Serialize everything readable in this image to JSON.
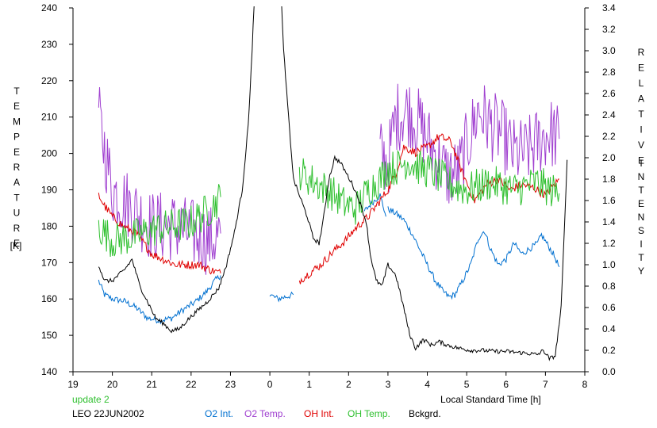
{
  "chart_data": {
    "type": "line",
    "status_note": "update 2",
    "station_label": "LEO 22JUN2002",
    "xlabel": "Local Standard Time [h]",
    "ylabel_left_letters": [
      "T",
      "E",
      "M",
      "P",
      "E",
      "R",
      "A",
      "T",
      "U",
      "R",
      "E"
    ],
    "ylabel_left_unit": "[K]",
    "ylabel_right_letters_1": [
      "R",
      "E",
      "L",
      "A",
      "T",
      "I",
      "V",
      "E"
    ],
    "ylabel_right_letters_2": [
      "I",
      "N",
      "T",
      "E",
      "N",
      "S",
      "I",
      "T",
      "Y"
    ],
    "x_ticks": [
      "19",
      "20",
      "21",
      "22",
      "23",
      "0",
      "1",
      "2",
      "3",
      "4",
      "5",
      "6",
      "7",
      "8"
    ],
    "xlim_hours_since_19": [
      0,
      13
    ],
    "y_left_ticks": [
      "140",
      "150",
      "160",
      "170",
      "180",
      "190",
      "200",
      "210",
      "220",
      "230",
      "240"
    ],
    "y_left_lim": [
      140,
      240
    ],
    "y_right_ticks": [
      "0.0",
      "0.2",
      "0.4",
      "0.6",
      "0.8",
      "1.0",
      "1.2",
      "1.4",
      "1.6",
      "1.8",
      "2.0",
      "2.2",
      "2.4",
      "2.6",
      "2.8",
      "3.0",
      "3.2",
      "3.4"
    ],
    "y_right_lim": [
      0,
      3.4
    ],
    "legend_placement": "bottom",
    "series": [
      {
        "name": "O2 Int.",
        "axis": "right",
        "color": "#0070d0",
        "noise": 0.03,
        "segments": [
          [
            [
              0.65,
              0.85
            ],
            [
              0.8,
              0.72
            ],
            [
              1.0,
              0.68
            ],
            [
              1.3,
              0.66
            ],
            [
              1.6,
              0.6
            ],
            [
              1.9,
              0.5
            ],
            [
              2.2,
              0.48
            ],
            [
              2.5,
              0.5
            ],
            [
              2.8,
              0.58
            ],
            [
              3.1,
              0.65
            ],
            [
              3.4,
              0.75
            ],
            [
              3.6,
              0.85
            ],
            [
              3.75,
              0.9
            ]
          ],
          [
            [
              5.0,
              0.72
            ],
            [
              5.2,
              0.68
            ],
            [
              5.4,
              0.7
            ],
            [
              5.6,
              0.72
            ]
          ],
          [
            [
              7.4,
              1.5
            ],
            [
              7.6,
              1.58
            ],
            [
              7.8,
              1.65
            ],
            [
              7.9,
              1.52
            ],
            [
              7.95,
              1.45
            ]
          ],
          [
            [
              8.0,
              1.52
            ],
            [
              8.2,
              1.48
            ],
            [
              8.4,
              1.42
            ],
            [
              8.6,
              1.3
            ],
            [
              8.8,
              1.15
            ],
            [
              9.0,
              1.0
            ],
            [
              9.2,
              0.85
            ],
            [
              9.4,
              0.75
            ],
            [
              9.55,
              0.7
            ],
            [
              9.7,
              0.72
            ],
            [
              9.9,
              0.85
            ],
            [
              10.1,
              1.0
            ],
            [
              10.3,
              1.25
            ],
            [
              10.45,
              1.32
            ],
            [
              10.6,
              1.15
            ],
            [
              10.8,
              1.0
            ],
            [
              11.0,
              1.05
            ],
            [
              11.2,
              1.2
            ],
            [
              11.4,
              1.1
            ],
            [
              11.6,
              1.15
            ],
            [
              11.8,
              1.2
            ],
            [
              11.9,
              1.28
            ],
            [
              12.0,
              1.22
            ],
            [
              12.2,
              1.1
            ],
            [
              12.35,
              0.98
            ]
          ]
        ]
      },
      {
        "name": "O2 Temp.",
        "axis": "left",
        "color": "#a040d0",
        "noise": 10,
        "segments": [
          [
            [
              0.65,
              210
            ],
            [
              1.0,
              190
            ],
            [
              1.5,
              185
            ],
            [
              2.0,
              180
            ],
            [
              2.5,
              180
            ],
            [
              3.0,
              178
            ],
            [
              3.5,
              176
            ],
            [
              3.75,
              178
            ]
          ],
          [
            [
              7.8,
              200
            ],
            [
              8.0,
              197
            ],
            [
              8.2,
              210
            ],
            [
              8.5,
              212
            ],
            [
              8.8,
              208
            ],
            [
              9.0,
              204
            ],
            [
              9.2,
              200
            ],
            [
              9.5,
              194
            ],
            [
              9.8,
              195
            ],
            [
              10.0,
              202
            ],
            [
              10.3,
              212
            ],
            [
              10.6,
              208
            ],
            [
              10.9,
              205
            ],
            [
              11.2,
              200
            ],
            [
              11.5,
              200
            ],
            [
              11.8,
              203
            ],
            [
              12.1,
              206
            ],
            [
              12.35,
              204
            ]
          ]
        ]
      },
      {
        "name": "OH Int.",
        "axis": "right",
        "color": "#e00000",
        "noise": 0.04,
        "segments": [
          [
            [
              0.65,
              1.65
            ],
            [
              0.8,
              1.55
            ],
            [
              1.0,
              1.45
            ],
            [
              1.3,
              1.35
            ],
            [
              1.6,
              1.3
            ],
            [
              2.0,
              1.1
            ],
            [
              2.3,
              1.05
            ],
            [
              2.6,
              1.0
            ],
            [
              2.9,
              1.0
            ],
            [
              3.2,
              1.0
            ],
            [
              3.5,
              0.95
            ],
            [
              3.75,
              0.92
            ]
          ],
          [
            [
              5.75,
              0.85
            ],
            [
              6.0,
              0.92
            ],
            [
              6.3,
              1.0
            ],
            [
              6.6,
              1.12
            ],
            [
              6.9,
              1.22
            ],
            [
              7.2,
              1.35
            ],
            [
              7.5,
              1.45
            ],
            [
              7.8,
              1.6
            ],
            [
              8.0,
              1.7
            ],
            [
              8.2,
              1.85
            ],
            [
              8.4,
              2.1
            ],
            [
              8.7,
              2.05
            ],
            [
              9.0,
              2.1
            ],
            [
              9.3,
              2.2
            ],
            [
              9.6,
              2.15
            ],
            [
              9.9,
              1.85
            ],
            [
              10.2,
              1.6
            ],
            [
              10.5,
              1.75
            ],
            [
              10.8,
              1.8
            ],
            [
              11.1,
              1.7
            ],
            [
              11.4,
              1.75
            ],
            [
              11.7,
              1.72
            ],
            [
              12.0,
              1.65
            ],
            [
              12.35,
              1.8
            ]
          ]
        ]
      },
      {
        "name": "OH Temp.",
        "axis": "left",
        "color": "#30c030",
        "noise": 5,
        "segments": [
          [
            [
              0.65,
              180
            ],
            [
              1.0,
              176
            ],
            [
              1.5,
              177
            ],
            [
              2.0,
              179
            ],
            [
              2.5,
              180
            ],
            [
              3.0,
              181
            ],
            [
              3.5,
              185
            ],
            [
              3.75,
              188
            ]
          ],
          [
            [
              5.75,
              195
            ],
            [
              6.0,
              193
            ],
            [
              6.3,
              191
            ],
            [
              6.6,
              189
            ],
            [
              6.9,
              186
            ],
            [
              7.2,
              185
            ],
            [
              7.5,
              190
            ],
            [
              7.8,
              193
            ],
            [
              8.0,
              196
            ],
            [
              8.2,
              196
            ],
            [
              8.5,
              198
            ],
            [
              8.8,
              196
            ],
            [
              9.1,
              195
            ],
            [
              9.4,
              193
            ],
            [
              9.7,
              191
            ],
            [
              10.0,
              190
            ],
            [
              10.3,
              191
            ],
            [
              10.6,
              192
            ],
            [
              10.9,
              191
            ],
            [
              11.2,
              190
            ],
            [
              11.5,
              191
            ],
            [
              11.8,
              192
            ],
            [
              12.1,
              190
            ],
            [
              12.35,
              189
            ]
          ]
        ]
      },
      {
        "name": "Bckgrd.",
        "axis": "right",
        "color": "#000000",
        "noise": 0.02,
        "segments": [
          [
            [
              0.65,
              1.0
            ],
            [
              0.8,
              0.85
            ],
            [
              1.0,
              0.85
            ],
            [
              1.3,
              0.95
            ],
            [
              1.5,
              1.05
            ],
            [
              1.7,
              0.8
            ],
            [
              1.9,
              0.65
            ],
            [
              2.1,
              0.5
            ],
            [
              2.3,
              0.45
            ],
            [
              2.5,
              0.38
            ],
            [
              2.7,
              0.4
            ],
            [
              2.9,
              0.48
            ],
            [
              3.1,
              0.55
            ],
            [
              3.4,
              0.65
            ],
            [
              3.7,
              0.78
            ],
            [
              3.9,
              1.0
            ],
            [
              4.1,
              1.3
            ],
            [
              4.3,
              1.7
            ],
            [
              4.45,
              2.3
            ],
            [
              4.55,
              3.0
            ],
            [
              4.6,
              3.45
            ]
          ],
          [
            [
              5.3,
              3.45
            ],
            [
              5.35,
              3.0
            ],
            [
              5.45,
              2.5
            ],
            [
              5.6,
              1.8
            ],
            [
              5.8,
              1.6
            ],
            [
              5.95,
              1.45
            ],
            [
              6.1,
              1.25
            ],
            [
              6.25,
              1.2
            ],
            [
              6.35,
              1.4
            ],
            [
              6.5,
              1.8
            ],
            [
              6.65,
              2.0
            ],
            [
              6.8,
              1.95
            ],
            [
              6.95,
              1.85
            ],
            [
              7.1,
              1.75
            ],
            [
              7.25,
              1.62
            ],
            [
              7.45,
              1.4
            ],
            [
              7.55,
              1.1
            ],
            [
              7.7,
              0.85
            ],
            [
              7.85,
              0.8
            ],
            [
              8.0,
              1.0
            ],
            [
              8.2,
              0.9
            ],
            [
              8.4,
              0.6
            ],
            [
              8.55,
              0.35
            ],
            [
              8.7,
              0.22
            ],
            [
              8.9,
              0.3
            ],
            [
              9.1,
              0.25
            ],
            [
              9.3,
              0.28
            ],
            [
              9.5,
              0.25
            ],
            [
              9.8,
              0.22
            ],
            [
              10.1,
              0.2
            ],
            [
              10.4,
              0.2
            ],
            [
              10.7,
              0.19
            ],
            [
              11.0,
              0.19
            ],
            [
              11.3,
              0.18
            ],
            [
              11.6,
              0.17
            ],
            [
              11.8,
              0.16
            ],
            [
              11.95,
              0.2
            ],
            [
              12.1,
              0.12
            ],
            [
              12.25,
              0.15
            ],
            [
              12.4,
              0.6
            ],
            [
              12.5,
              1.5
            ],
            [
              12.55,
              1.98
            ]
          ]
        ]
      }
    ]
  }
}
